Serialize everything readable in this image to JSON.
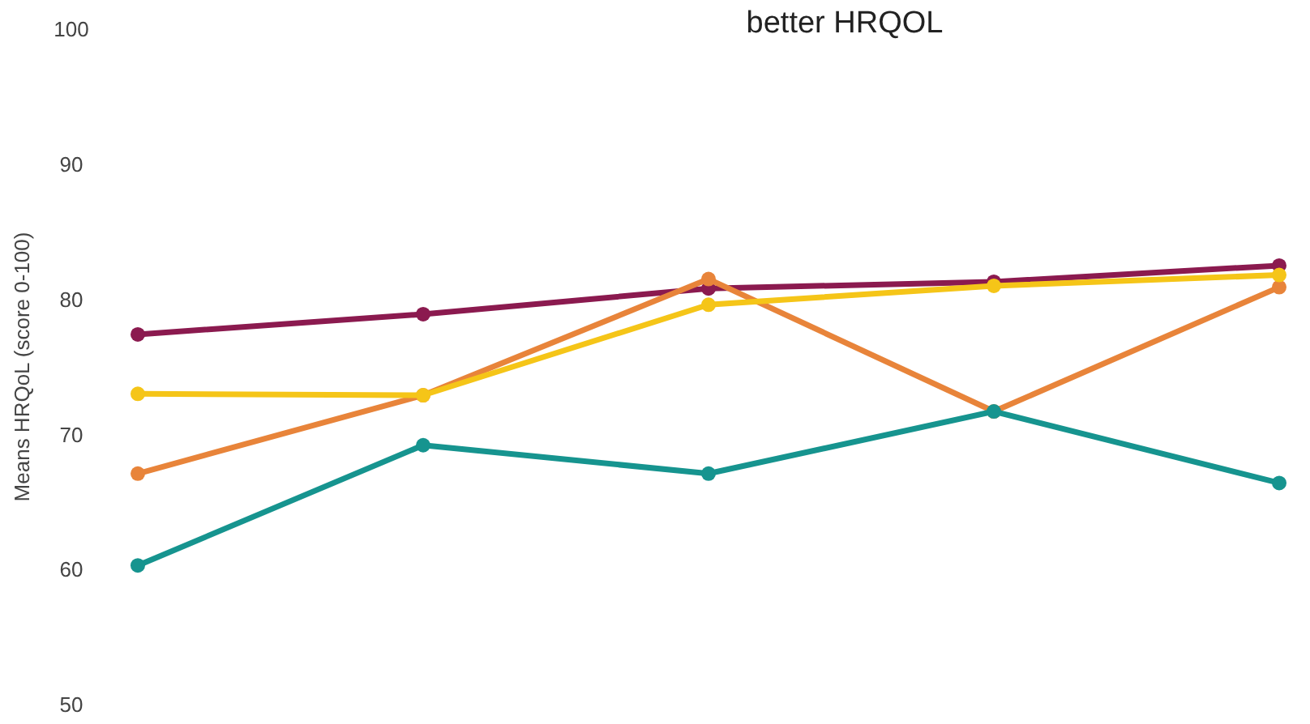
{
  "chart_data": {
    "type": "line",
    "ylabel": "Means HRQoL (score 0-100)",
    "annotations": [
      "better HRQOL"
    ],
    "categories": [
      null,
      null,
      null,
      null,
      null
    ],
    "ylim": [
      50,
      100
    ],
    "yticks": [
      50,
      60,
      70,
      80,
      90,
      100
    ],
    "tick_labels": "y",
    "grid": false,
    "marker": "circle",
    "line_style": "solid",
    "series": [
      {
        "color": "#8b1a4f",
        "values": [
          77.4,
          78.9,
          80.8,
          81.3,
          82.5
        ]
      },
      {
        "color": "#e8843a",
        "values": [
          67.1,
          72.9,
          81.5,
          71.7,
          80.9
        ]
      },
      {
        "color": "#f5c518",
        "values": [
          73.0,
          72.9,
          79.6,
          81.0,
          81.8
        ]
      },
      {
        "color": "#16948f",
        "values": [
          60.3,
          69.2,
          67.1,
          71.7,
          66.4
        ]
      }
    ]
  }
}
